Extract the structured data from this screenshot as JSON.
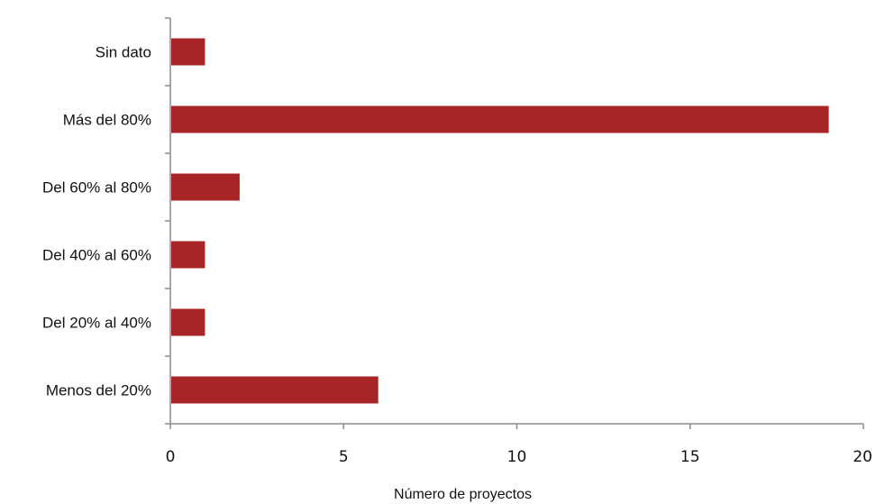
{
  "chart_data": {
    "type": "bar",
    "orientation": "horizontal",
    "categories": [
      "Sin dato",
      "Más del 80%",
      "Del 60% al 80%",
      "Del 40% al 60%",
      "Del 20% al 40%",
      "Menos del 20%"
    ],
    "values": [
      1,
      19,
      2,
      1,
      1,
      6
    ],
    "xlabel": "Número de proyectos",
    "ylabel": "",
    "xlim": [
      0,
      20
    ],
    "xticks": [
      0,
      5,
      10,
      15,
      20
    ],
    "grid": false,
    "legend": "none",
    "bar_color": "#a82527"
  }
}
